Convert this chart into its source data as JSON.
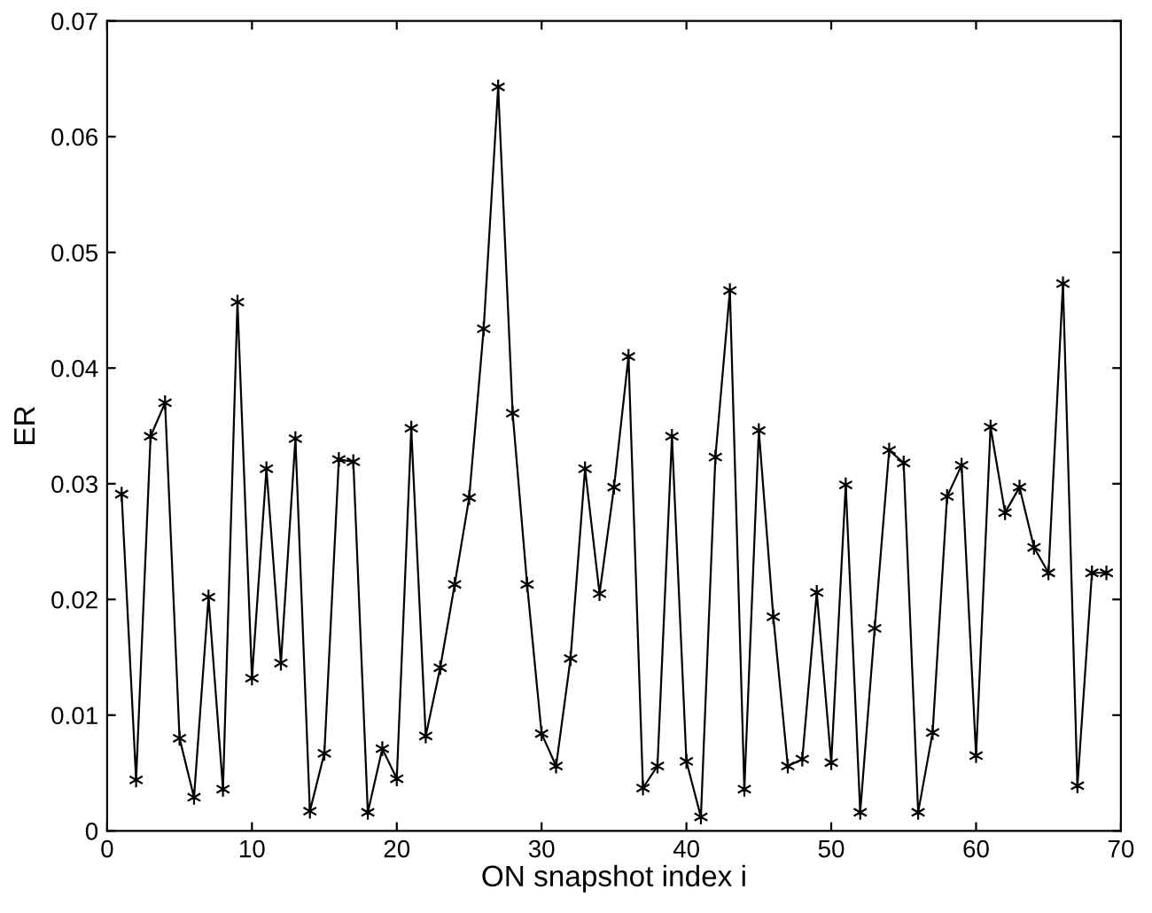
{
  "chart_data": {
    "type": "line",
    "xlabel": "ON snapshot index i",
    "ylabel": "ER",
    "x": [
      1,
      2,
      3,
      4,
      5,
      6,
      7,
      8,
      9,
      10,
      11,
      12,
      13,
      14,
      15,
      16,
      17,
      18,
      19,
      20,
      21,
      22,
      23,
      24,
      25,
      26,
      27,
      28,
      29,
      30,
      31,
      32,
      33,
      34,
      35,
      36,
      37,
      38,
      39,
      40,
      41,
      42,
      43,
      44,
      45,
      46,
      47,
      48,
      49,
      50,
      51,
      52,
      53,
      54,
      55,
      56,
      57,
      58,
      59,
      60,
      61,
      62,
      63,
      64,
      65,
      66,
      67,
      68,
      69
    ],
    "series": [
      {
        "color": "#000000",
        "values": [
          0.0291,
          0.0044,
          0.0341,
          0.037,
          0.008,
          0.0029,
          0.0202,
          0.0036,
          0.0457,
          0.0132,
          0.0313,
          0.0145,
          0.0339,
          0.0017,
          0.0067,
          0.0321,
          0.0319,
          0.0016,
          0.0071,
          0.0045,
          0.0348,
          0.0082,
          0.0141,
          0.0213,
          0.0288,
          0.0434,
          0.0643,
          0.0361,
          0.0213,
          0.0084,
          0.0056,
          0.0149,
          0.0313,
          0.0205,
          0.0297,
          0.041,
          0.0037,
          0.0056,
          0.0341,
          0.006,
          0.0012,
          0.0323,
          0.0467,
          0.0036,
          0.0346,
          0.0185,
          0.0056,
          0.0062,
          0.0206,
          0.0059,
          0.0299,
          0.0016,
          0.0175,
          0.0329,
          0.0318,
          0.0016,
          0.0085,
          0.0289,
          0.0316,
          0.0065,
          0.0349,
          0.0275,
          0.0297,
          0.0245,
          0.0223,
          0.0473,
          0.0039,
          0.0223,
          0.0223
        ]
      }
    ],
    "xlim": [
      0,
      70
    ],
    "xticks": [
      0,
      10,
      20,
      30,
      40,
      50,
      60,
      70
    ],
    "ylim": [
      0,
      0.07
    ],
    "yticks": [
      0,
      0.01,
      0.02,
      0.03,
      0.04,
      0.05,
      0.06,
      0.07
    ],
    "grid": false,
    "legend": false,
    "marker": "cross",
    "line_style": "solid"
  }
}
